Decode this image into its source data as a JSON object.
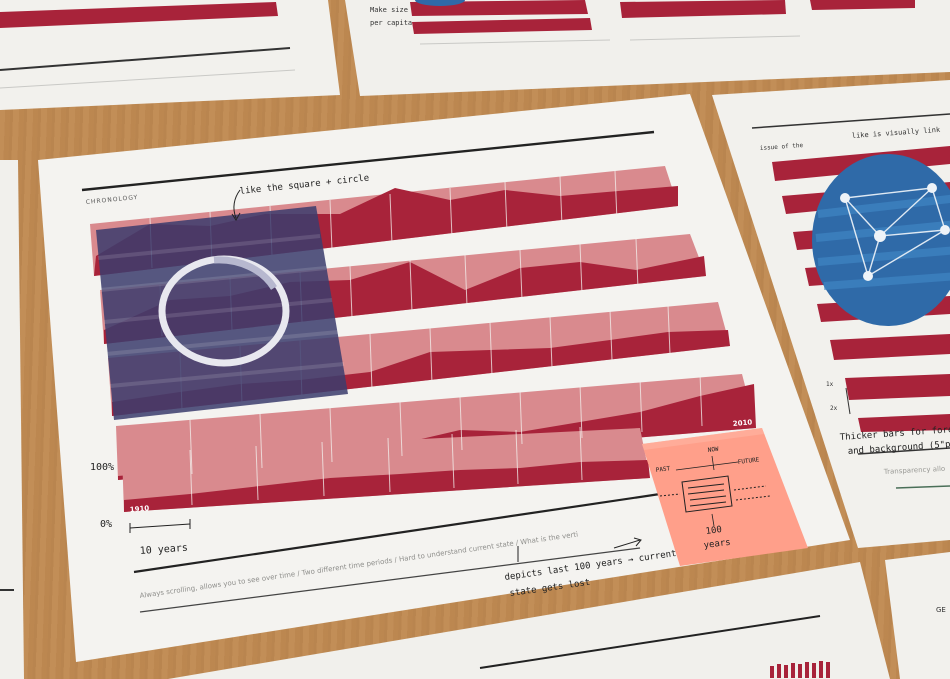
{
  "main_sheet": {
    "section_label": "CHRONOLOGY",
    "annotation_square_circle": "like the square + circle",
    "axis_top": "100%",
    "axis_bottom": "0%",
    "year_start": "1910",
    "year_end": "2010",
    "scale_label": "10 years",
    "caption": "Always scrolling, allows you to see over time / Two different time periods / Hard to understand current state / What is the verti",
    "note_line1": "depicts last 100 years → current",
    "note_line2": "state gets lost"
  },
  "sticky_note": {
    "label_now": "NOW",
    "label_past": "PAST",
    "label_future": "FUTURE",
    "count": "100",
    "unit": "years"
  },
  "right_sheet": {
    "note_top_1": "like is visually link",
    "note_top_2": "issue of the",
    "note_axis_1": "1x",
    "note_axis_2": "2x",
    "note_bars_1": "Thicker bars for foreground",
    "note_bars_2": "and background (5\"p",
    "caption": "Transparency allo"
  },
  "top_sheet": {
    "note_1": "Make size",
    "note_2": "per capita"
  },
  "corner_sheet": {
    "label": "GE"
  },
  "colors": {
    "flag_red": "#a8233a",
    "flag_pink": "#d98a8e",
    "canton_navy": "#3b3d6e",
    "globe_blue": "#2f6aa8",
    "sticky_note": "#ff9f8a",
    "table_wood": "#c08a52",
    "paper": "#f3f2ef"
  }
}
